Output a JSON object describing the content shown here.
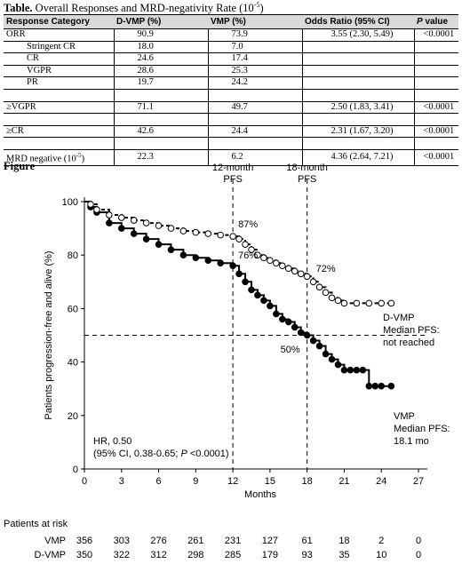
{
  "table": {
    "title_bold": "Table.",
    "title_rest": " Overall Responses and MRD-negativity Rate (10",
    "title_sup": "-5",
    "title_end": ")",
    "headers": [
      "Response Category",
      "D-VMP (%)",
      "VMP (%)",
      "Odds Ratio (95% CI)",
      "P value"
    ],
    "rows": [
      {
        "cat": "ORR",
        "dvmp": "90.9",
        "vmp": "73.9",
        "or": "3.55 (2.30, 5.49)",
        "p": "<0.0001",
        "indent": false
      },
      {
        "cat": "Stringent CR",
        "dvmp": "18.0",
        "vmp": "7.0",
        "or": "",
        "p": "",
        "indent": true
      },
      {
        "cat": "CR",
        "dvmp": "24.6",
        "vmp": "17.4",
        "or": "",
        "p": "",
        "indent": true
      },
      {
        "cat": "VGPR",
        "dvmp": "28.6",
        "vmp": "25.3",
        "or": "",
        "p": "",
        "indent": true
      },
      {
        "cat": "PR",
        "dvmp": "19.7",
        "vmp": "24.2",
        "or": "",
        "p": "",
        "indent": true
      },
      {
        "cat": "",
        "dvmp": "",
        "vmp": "",
        "or": "",
        "p": "",
        "indent": false
      },
      {
        "cat": "≥VGPR",
        "dvmp": "71.1",
        "vmp": "49.7",
        "or": "2.50 (1.83, 3.41)",
        "p": "<0.0001",
        "indent": false
      },
      {
        "cat": "",
        "dvmp": "",
        "vmp": "",
        "or": "",
        "p": "",
        "indent": false
      },
      {
        "cat": "≥CR",
        "dvmp": "42.6",
        "vmp": "24.4",
        "or": "2.31 (1.67, 3.20)",
        "p": "<0.0001",
        "indent": false
      },
      {
        "cat": "",
        "dvmp": "",
        "vmp": "",
        "or": "",
        "p": "",
        "indent": false
      },
      {
        "cat": "MRD negative (10",
        "cat_sup": "-5",
        "cat_end": ")",
        "dvmp": "22.3",
        "vmp": "6.2",
        "or": "4.36 (2.64, 7.21)",
        "p": "<0.0001",
        "indent": false
      }
    ]
  },
  "figure_label": "Figure",
  "chart_data": {
    "type": "line",
    "xlabel": "Months",
    "ylabel": "Patients progression-free and alive (%)",
    "xlim": [
      0,
      27
    ],
    "ylim": [
      0,
      100
    ],
    "xticks": [
      "0",
      "3",
      "6",
      "9",
      "12",
      "15",
      "18",
      "21",
      "24",
      "27"
    ],
    "yticks": [
      "0",
      "20",
      "40",
      "60",
      "80",
      "100"
    ],
    "reference_lines": {
      "vertical": [
        12,
        18
      ],
      "horizontal": 50
    },
    "annotations": {
      "pfs12_line1": "12-month",
      "pfs12_line2": "PFS",
      "pfs18_line1": "18-month",
      "pfs18_line2": "PFS",
      "dvmp_12": "87%",
      "vmp_12": "76%",
      "dvmp_18": "72%",
      "vmp_18": "50%",
      "dvmp_label1": "D-VMP",
      "dvmp_label2": "Median PFS:",
      "dvmp_label3": "not reached",
      "vmp_label1": "VMP",
      "vmp_label2": "Median PFS:",
      "vmp_label3": "18.1 mo",
      "hr1": "HR, 0.50",
      "hr2_pre": "(95% CI, 0.38-0.65; ",
      "hr2_p": "P",
      "hr2_post": " <0.0001)"
    },
    "series": [
      {
        "name": "D-VMP",
        "style": "dashed-open-circles",
        "x": [
          0,
          0.5,
          1,
          2,
          3,
          4,
          5,
          6,
          7,
          8,
          9,
          10,
          11,
          12,
          12.5,
          13,
          13.5,
          14,
          14.5,
          15,
          15.5,
          16,
          16.5,
          17,
          17.5,
          18,
          18.5,
          19,
          19.5,
          20,
          20.5,
          21,
          22,
          23,
          24,
          24.8
        ],
        "y": [
          100,
          99,
          97,
          95,
          94,
          93,
          92,
          91,
          90,
          89,
          88.5,
          88,
          87.5,
          87,
          86,
          84,
          82,
          80,
          79,
          78,
          77,
          76,
          75,
          74,
          73,
          72,
          70,
          68,
          66,
          64,
          63,
          62,
          62,
          62,
          62,
          62
        ]
      },
      {
        "name": "VMP",
        "style": "solid-filled-circles",
        "x": [
          0,
          0.5,
          1,
          2,
          3,
          4,
          5,
          6,
          7,
          8,
          9,
          10,
          11,
          12,
          12.5,
          13,
          13.5,
          14,
          14.5,
          15,
          15.5,
          16,
          16.5,
          17,
          17.5,
          18,
          18.5,
          19,
          19.5,
          20,
          20.5,
          21,
          21.5,
          22,
          22.5,
          23,
          23.5,
          24,
          24.8
        ],
        "y": [
          100,
          98,
          96,
          92,
          90,
          88,
          86,
          84,
          82,
          80,
          79,
          78,
          77,
          76,
          73,
          70,
          67,
          65,
          63,
          61,
          58,
          56,
          55,
          53,
          51,
          50,
          48,
          46,
          43,
          41,
          39,
          37,
          37,
          37,
          37,
          31,
          31,
          31,
          31
        ]
      }
    ]
  },
  "risk_table": {
    "title": "Patients at risk",
    "rows": [
      {
        "label": "VMP",
        "values": [
          "356",
          "303",
          "276",
          "261",
          "231",
          "127",
          "61",
          "18",
          "2",
          "0"
        ]
      },
      {
        "label": "D-VMP",
        "values": [
          "350",
          "322",
          "312",
          "298",
          "285",
          "179",
          "93",
          "35",
          "10",
          "0"
        ]
      }
    ]
  }
}
